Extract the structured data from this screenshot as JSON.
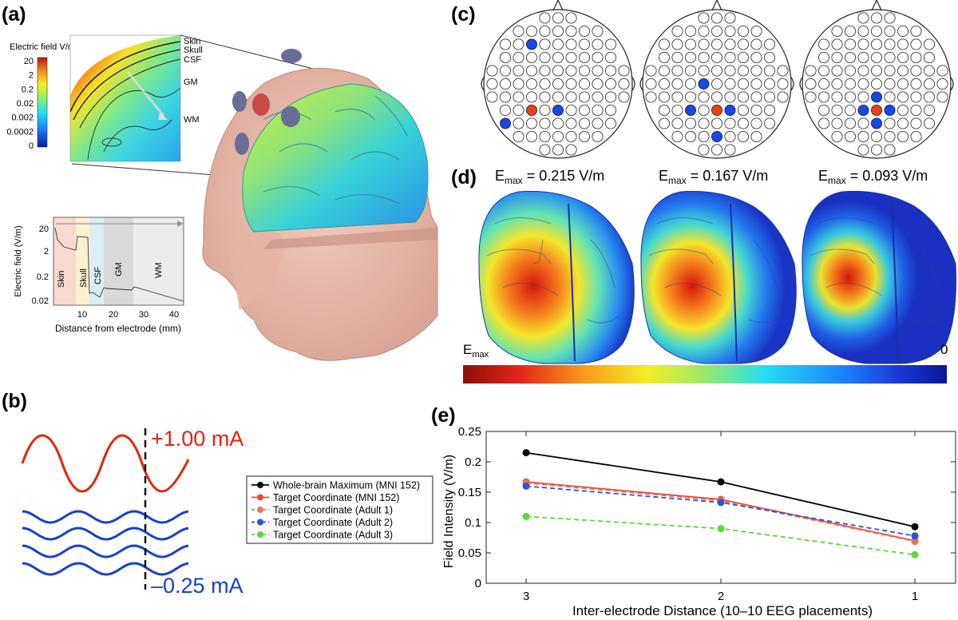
{
  "panels": {
    "a": "(a)",
    "b": "(b)",
    "c": "(c)",
    "d": "(d)",
    "e": "(e)"
  },
  "panel_a": {
    "colorbar_title": "Electric field V/m",
    "colorbar_ticks": [
      "20",
      "2",
      "0.2",
      "0.02",
      "0.002",
      "0.0002",
      "0"
    ],
    "tissue_labels": [
      "Skin",
      "Skull",
      "CSF",
      "GM",
      "WM"
    ],
    "profile": {
      "ylabel": "Electric field (V/m)",
      "xlabel": "Distance from electrode (mm)",
      "yticks": [
        "20",
        "2",
        "0.2",
        "0.02"
      ],
      "xticks": [
        "10",
        "20",
        "30",
        "40"
      ],
      "regions": [
        "Skin",
        "Skull",
        "CSF",
        "GM",
        "WM"
      ],
      "colors": {
        "skin": "#f9d9cf",
        "skull": "#fff1cf",
        "csf": "#dbeef6",
        "gm": "#d9d9d9",
        "wm": "#ececec"
      }
    }
  },
  "panel_b": {
    "high_current": "+1.00 mA",
    "low_current": "–0.25 mA",
    "colors": {
      "red": "#e8210a",
      "blue": "#1a3fcc"
    }
  },
  "panel_c": {
    "active_colors": {
      "anode": "#e8401c",
      "cathode": "#1747e6"
    }
  },
  "panel_d": {
    "emax_values": [
      "0.215",
      "0.167",
      "0.093"
    ],
    "unit": "V/m",
    "colorbar_max": "E",
    "colorbar_max_sub": "max",
    "colorbar_min": "0"
  },
  "chart_data": {
    "type": "line",
    "xlabel": "Inter-electrode Distance (10–10 EEG placements)",
    "ylabel": "Field Intensity (V/m)",
    "categories": [
      "3",
      "2",
      "1"
    ],
    "ylim": [
      0,
      0.25
    ],
    "yticks": [
      "0",
      "0.05",
      "0.1",
      "0.15",
      "0.2",
      "0.25"
    ],
    "grid": false,
    "legend_position": "left",
    "series": [
      {
        "name": "Whole-brain Maximum (MNI 152)",
        "values": [
          0.215,
          0.167,
          0.093
        ],
        "color": "#000000",
        "dash": "solid"
      },
      {
        "name": "Target Coordinate (MNI 152)",
        "values": [
          0.167,
          0.138,
          0.07
        ],
        "color": "#e64b35",
        "dash": "solid"
      },
      {
        "name": "Target Coordinate (Adult 1)",
        "values": [
          0.165,
          0.136,
          0.069
        ],
        "color": "#e8745f",
        "dash": "dashed"
      },
      {
        "name": "Target Coordinate (Adult 2)",
        "values": [
          0.16,
          0.133,
          0.078
        ],
        "color": "#2a52d6",
        "dash": "dashed"
      },
      {
        "name": "Target Coordinate (Adult 3)",
        "values": [
          0.11,
          0.09,
          0.047
        ],
        "color": "#5ad83a",
        "dash": "dashed"
      }
    ]
  }
}
